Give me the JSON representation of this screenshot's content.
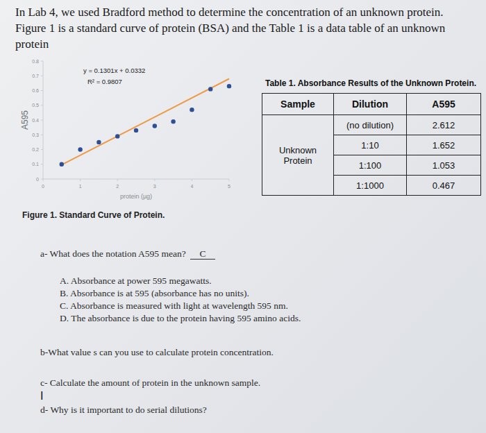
{
  "header": {
    "lines": [
      "In Lab 4, we used Bradford method to determine the concentration of an unknown protein.",
      "Figure 1 is a standard curve of protein (BSA) and the Table 1 is a data table of an unknown",
      "protein"
    ]
  },
  "chart_data": {
    "type": "scatter",
    "x_label": "protein (µg)",
    "y_label": "A595",
    "annotations": [
      "y = 0.1301x + 0.0332",
      "R² = 0.9807"
    ],
    "xlim": [
      0,
      5
    ],
    "xticks": [
      0,
      1,
      2,
      3,
      4,
      5
    ],
    "ylim": [
      0,
      0.8
    ],
    "yticks": [
      0,
      0.1,
      0.2,
      0.3,
      0.4,
      0.5,
      0.6,
      0.7,
      0.8
    ],
    "grid": false,
    "series": [
      {
        "type": "scatter",
        "color": "#2d4f96",
        "marker": "circle",
        "x": [
          0.5,
          1,
          1.5,
          2,
          2.5,
          3,
          3.5,
          4,
          4.5,
          5
        ],
        "values": [
          0.1,
          0.2,
          0.25,
          0.29,
          0.33,
          0.36,
          0.39,
          0.47,
          0.61,
          0.63
        ]
      },
      {
        "type": "line",
        "color": "#ee9a48",
        "line_style": "solid",
        "x": [
          0.45,
          5
        ],
        "values": [
          0.09,
          0.68
        ]
      }
    ]
  },
  "figure_caption": "Figure 1. Standard Curve of Protein.",
  "table": {
    "title": "Table 1. Absorbance Results of the Unknown Protein.",
    "headers": [
      "Sample",
      "Dilution",
      "A595"
    ],
    "sample": [
      "Unknown",
      "Protein"
    ],
    "rows": [
      [
        "(no dilution)",
        2.612
      ],
      [
        "1:10",
        1.652
      ],
      [
        "1:100",
        1.053
      ],
      [
        "1:1000",
        0.467
      ]
    ]
  },
  "questions": [
    {
      "text": "a-  What does the notation A595 mean?",
      "answer": "C",
      "options": [
        "A. Absorbance at power 595 megawatts.",
        "B. Absorbance is at 595 (absorbance has no units).",
        "C. Absorbance is measured with light at wavelength 595 nm.",
        "D. The absorbance is due to the protein having 595 amino acids."
      ]
    },
    {
      "text": "b-What value s can you use to calculate protein concentration."
    },
    {
      "text": "c- Calculate the amount of protein in the unknown sample.",
      "mark": "I"
    },
    {
      "text": "d- Why is it important to do serial dilutions?"
    }
  ]
}
